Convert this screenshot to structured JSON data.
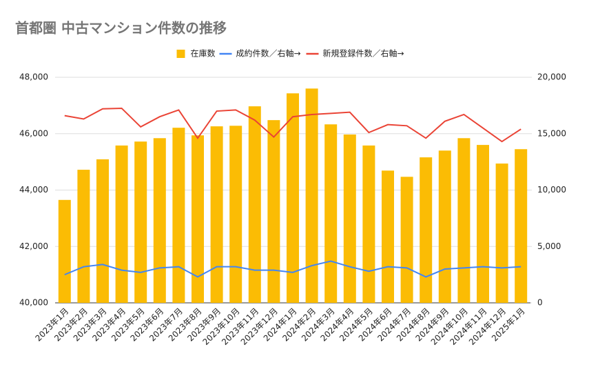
{
  "chart_data": {
    "type": "bar",
    "title": "首都圏 中古マンション件数の推移",
    "categories": [
      "2023年1月",
      "2023年2月",
      "2023年3月",
      "2023年4月",
      "2023年5月",
      "2023年6月",
      "2023年7月",
      "2023年8月",
      "2023年9月",
      "2023年10月",
      "2023年11月",
      "2023年12月",
      "2024年1月",
      "2024年2月",
      "2024年3月",
      "2024年4月",
      "2024年5月",
      "2024年6月",
      "2024年7月",
      "2024年8月",
      "2024年9月",
      "2024年10月",
      "2024年11月",
      "2024年12月",
      "2025年1月"
    ],
    "series": [
      {
        "name": "在庫数",
        "type": "bar",
        "color": "#fbbc04",
        "values": [
          43650,
          44720,
          45090,
          45580,
          45720,
          45840,
          46210,
          45940,
          46260,
          46280,
          46970,
          46480,
          47430,
          47600,
          46330,
          45970,
          45580,
          44690,
          44470,
          45160,
          45400,
          45840,
          45600,
          44940,
          45450
        ]
      },
      {
        "name": "成約件数／右軸→",
        "type": "line",
        "axis": "y2",
        "color": "#4285f4",
        "values": [
          2500,
          3200,
          3400,
          2900,
          2700,
          3100,
          3200,
          2300,
          3200,
          3200,
          2900,
          2900,
          2700,
          3300,
          3700,
          3200,
          2800,
          3200,
          3100,
          2300,
          3000,
          3100,
          3200,
          3100,
          3200
        ]
      },
      {
        "name": "新規登録件数／右軸→",
        "type": "line",
        "axis": "y2",
        "color": "#ea4335",
        "values": [
          16600,
          16300,
          17200,
          17250,
          15600,
          16500,
          17100,
          14600,
          17000,
          17100,
          16200,
          14700,
          16500,
          16700,
          16800,
          16900,
          15100,
          15800,
          15700,
          14600,
          16100,
          16700,
          15500,
          14300,
          15400
        ]
      }
    ],
    "ylim": [
      40000,
      48000
    ],
    "yticks": [
      {
        "value": 40000,
        "label": "40,000"
      },
      {
        "value": 42000,
        "label": "42,000"
      },
      {
        "value": 44000,
        "label": "44,000"
      },
      {
        "value": 46000,
        "label": "46,000"
      },
      {
        "value": 48000,
        "label": "48,000"
      }
    ],
    "y2lim": [
      0,
      20000
    ],
    "y2ticks": [
      0,
      {
        "value": 5000,
        "label": "5,000"
      },
      {
        "value": 10000,
        "label": "10,000"
      },
      {
        "value": 15000,
        "label": "15,000"
      },
      {
        "value": 20000,
        "label": "20,000"
      }
    ],
    "grid": true,
    "legend": "top"
  }
}
